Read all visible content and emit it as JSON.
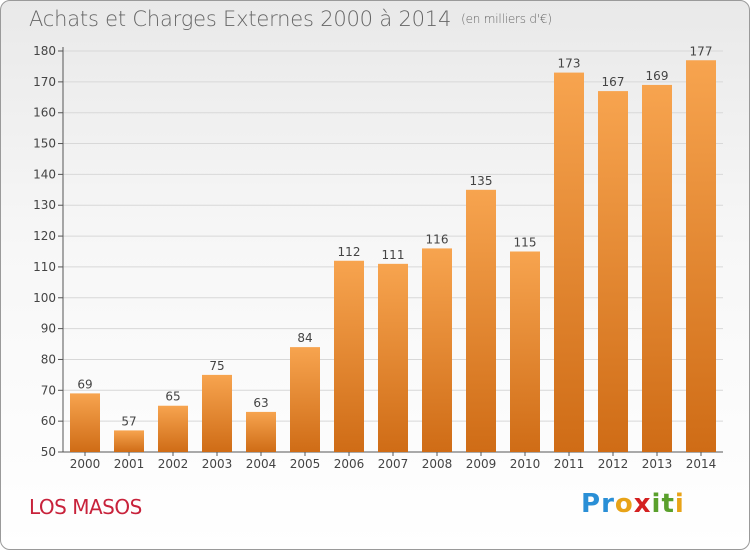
{
  "header": {
    "title": "Achats et Charges Externes 2000 à 2014",
    "unit": "(en milliers d'€)"
  },
  "footer": {
    "location": "LOS MASOS",
    "brand": "Proxiti"
  },
  "colors": {
    "bar_light": "#f6a24e",
    "bar_dark": "#d06f18",
    "location": "#c8223b"
  },
  "chart_data": {
    "type": "bar",
    "title": "Achats et Charges Externes 2000 à 2014",
    "subtitle": "(en milliers d'€)",
    "categories": [
      "2000",
      "2001",
      "2002",
      "2003",
      "2004",
      "2005",
      "2006",
      "2007",
      "2008",
      "2009",
      "2010",
      "2011",
      "2012",
      "2013",
      "2014"
    ],
    "values": [
      69,
      57,
      65,
      75,
      63,
      84,
      112,
      111,
      116,
      135,
      115,
      173,
      167,
      169,
      177
    ],
    "ylim": [
      50,
      180
    ],
    "yticks": [
      50,
      60,
      70,
      80,
      90,
      100,
      110,
      120,
      130,
      140,
      150,
      160,
      170,
      180
    ],
    "grid": true,
    "xlabel": "",
    "ylabel": ""
  }
}
